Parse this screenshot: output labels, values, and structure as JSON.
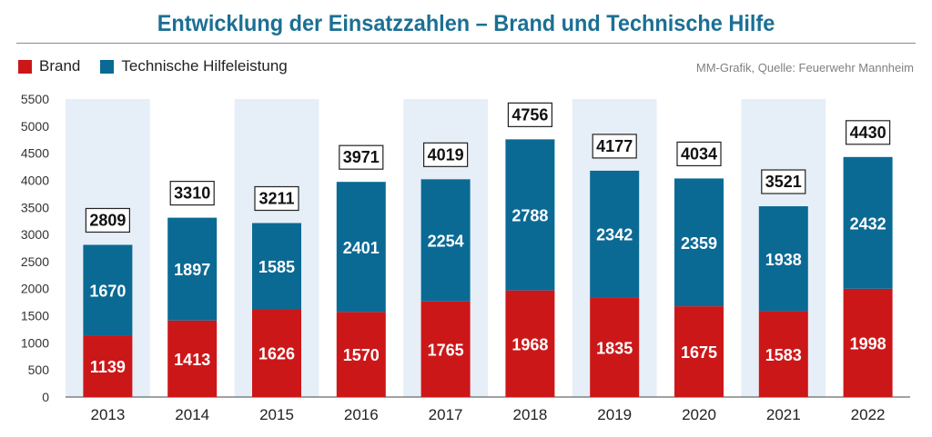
{
  "header": {
    "title": "Entwicklung der Einsatzzahlen – Brand und Technische Hilfe",
    "source": "MM-Grafik, Quelle: Feuerwehr Mannheim"
  },
  "colors": {
    "brand": "#cc1719",
    "technische_hilfe": "#0b6a94",
    "band": "#e6eff7",
    "title": "#1b6f94"
  },
  "chart_data": {
    "type": "bar",
    "stacked": true,
    "categories": [
      "2013",
      "2014",
      "2015",
      "2016",
      "2017",
      "2018",
      "2019",
      "2020",
      "2021",
      "2022"
    ],
    "series": [
      {
        "name": "Brand",
        "values": [
          1139,
          1413,
          1626,
          1570,
          1765,
          1968,
          1835,
          1675,
          1583,
          1998
        ]
      },
      {
        "name": "Technische Hilfeleistung",
        "values": [
          1670,
          1897,
          1585,
          2401,
          2254,
          2788,
          2342,
          2359,
          1938,
          2432
        ]
      }
    ],
    "totals": [
      2809,
      3310,
      3211,
      3971,
      4019,
      4756,
      4177,
      4034,
      3521,
      4430
    ],
    "ylim": [
      0,
      5500
    ],
    "yticks": [
      "0",
      "500",
      "1000",
      "1500",
      "2000",
      "2500",
      "3000",
      "3500",
      "4000",
      "4500",
      "5000",
      "5500"
    ],
    "legend_position": "top-left",
    "grid": false
  }
}
